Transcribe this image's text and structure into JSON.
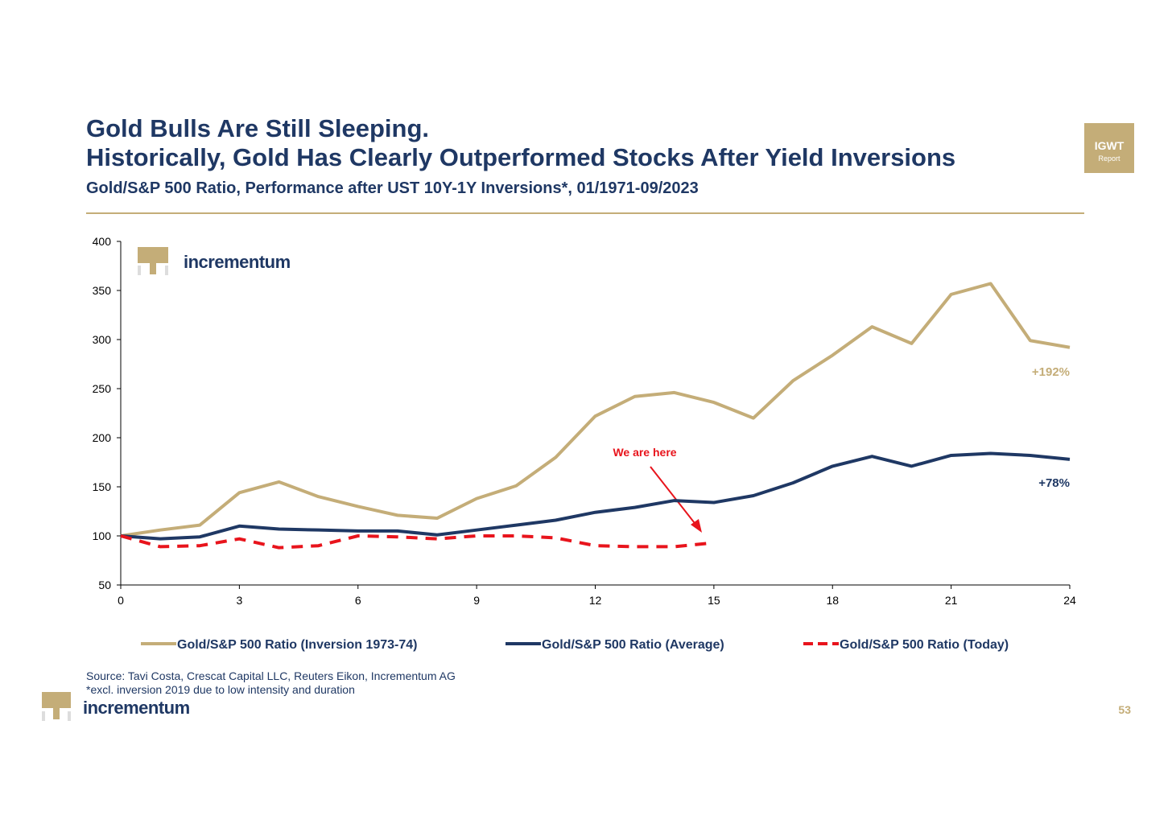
{
  "header": {
    "title_line1": "Gold Bulls Are Still Sleeping.",
    "title_line2": "Historically, Gold Has Clearly Outperformed Stocks After Yield Inversions",
    "subtitle": "Gold/S&P 500 Ratio, Performance after UST 10Y-1Y Inversions*, 01/1971-09/2023",
    "badge_line1": "IGWT",
    "badge_line2": "Report"
  },
  "chart_data": {
    "type": "line",
    "x": [
      0,
      1,
      2,
      3,
      4,
      5,
      6,
      7,
      8,
      9,
      10,
      11,
      12,
      13,
      14,
      15,
      16,
      17,
      18,
      19,
      20,
      21,
      22,
      23,
      24
    ],
    "series": [
      {
        "name": "Gold/S&P 500 Ratio (Inversion 1973-74)",
        "color": "#c4ad78",
        "dash": "solid",
        "values": [
          100,
          106,
          111,
          144,
          155,
          140,
          130,
          121,
          118,
          138,
          151,
          180,
          222,
          242,
          246,
          236,
          220,
          258,
          284,
          313,
          296,
          346,
          357,
          299,
          292
        ]
      },
      {
        "name": "Gold/S&P 500 Ratio (Average)",
        "color": "#1f3864",
        "dash": "solid",
        "values": [
          100,
          97,
          99,
          110,
          107,
          106,
          105,
          105,
          101,
          106,
          111,
          116,
          124,
          129,
          136,
          134,
          141,
          154,
          171,
          181,
          171,
          182,
          184,
          182,
          178
        ]
      },
      {
        "name": "Gold/S&P 500 Ratio (Today)",
        "color": "#e8141c",
        "dash": "dashed",
        "values": [
          100,
          89,
          90,
          97,
          88,
          90,
          100,
          99,
          97,
          100,
          100,
          98,
          90,
          89,
          89,
          93,
          null,
          null,
          null,
          null,
          null,
          null,
          null,
          null,
          null
        ]
      }
    ],
    "xlim": [
      0,
      24
    ],
    "xticks": [
      0,
      3,
      6,
      9,
      12,
      15,
      18,
      21,
      24
    ],
    "ylim": [
      50,
      400
    ],
    "yticks": [
      50,
      100,
      150,
      200,
      250,
      300,
      350,
      400
    ],
    "annotations": {
      "gold_change": "+192%",
      "average_change": "+78%",
      "today_marker": "We are here"
    }
  },
  "footer": {
    "source": "Source: Tavi Costa, Crescat Capital LLC, Reuters Eikon, Incrementum AG",
    "note": "*excl. inversion 2019 due to low intensity and duration",
    "brand": "incrementum",
    "chart_brand": "incrementum",
    "page": "53"
  }
}
